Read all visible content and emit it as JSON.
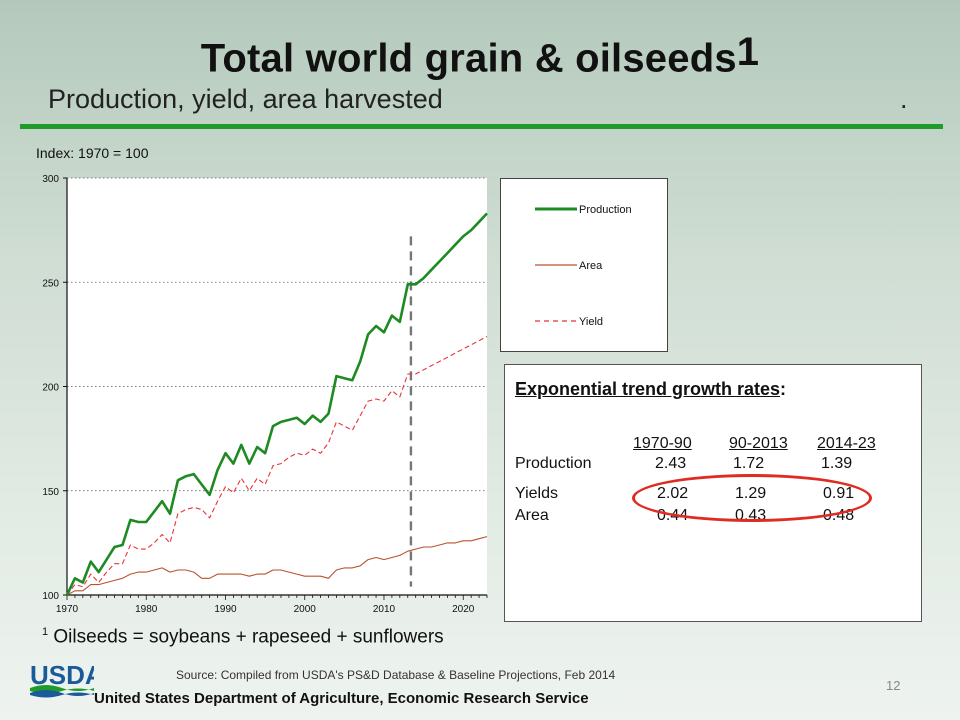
{
  "header": {
    "title": "Total world grain & oilseeds",
    "title_superscript": "1",
    "subtitle": "Production, yield, area harvested",
    "subtitle_trailing": "."
  },
  "index_label": "Index: 1970 = 100",
  "chart_data": {
    "type": "line",
    "title": "",
    "xlabel": "",
    "ylabel": "Index: 1970 = 100",
    "xlim": [
      1970,
      2023
    ],
    "ylim": [
      100,
      300
    ],
    "x_ticks": [
      "1970",
      "1980",
      "1990",
      "2000",
      "2010",
      "2020"
    ],
    "y_ticks": [
      "300",
      "250",
      "200",
      "150",
      "100"
    ],
    "grid": "horizontal dotted",
    "projection_marker_year": 2013.4,
    "legend_position": "right, outside plot",
    "x": [
      1970,
      1971,
      1972,
      1973,
      1974,
      1975,
      1976,
      1977,
      1978,
      1979,
      1980,
      1981,
      1982,
      1983,
      1984,
      1985,
      1986,
      1987,
      1988,
      1989,
      1990,
      1991,
      1992,
      1993,
      1994,
      1995,
      1996,
      1997,
      1998,
      1999,
      2000,
      2001,
      2002,
      2003,
      2004,
      2005,
      2006,
      2007,
      2008,
      2009,
      2010,
      2011,
      2012,
      2013,
      2014,
      2015,
      2016,
      2017,
      2018,
      2019,
      2020,
      2021,
      2022,
      2023
    ],
    "series": [
      {
        "name": "Production",
        "color": "#1e8a22",
        "style": "solid",
        "values": [
          100,
          108,
          106,
          116,
          111,
          117,
          123,
          124,
          136,
          135,
          135,
          140,
          145,
          139,
          155,
          157,
          158,
          153,
          148,
          160,
          168,
          163,
          172,
          163,
          171,
          168,
          181,
          183,
          184,
          185,
          182,
          186,
          183,
          187,
          205,
          204,
          203,
          212,
          225,
          229,
          226,
          234,
          231,
          249,
          249,
          252,
          256,
          260,
          264,
          268,
          272,
          275,
          279,
          283
        ]
      },
      {
        "name": "Area",
        "color": "#b9522d",
        "style": "solid",
        "values": [
          100,
          102,
          102,
          105,
          105,
          106,
          107,
          108,
          110,
          111,
          111,
          112,
          113,
          111,
          112,
          112,
          111,
          108,
          108,
          110,
          110,
          110,
          110,
          109,
          110,
          110,
          112,
          112,
          111,
          110,
          109,
          109,
          109,
          108,
          112,
          113,
          113,
          114,
          117,
          118,
          117,
          118,
          119,
          121,
          122,
          123,
          123,
          124,
          125,
          125,
          126,
          126,
          127,
          128
        ]
      },
      {
        "name": "Yield",
        "color": "#e8333a",
        "style": "dashed",
        "values": [
          100,
          105,
          104,
          110,
          106,
          111,
          115,
          115,
          124,
          122,
          122,
          125,
          129,
          125,
          139,
          141,
          142,
          141,
          137,
          145,
          152,
          149,
          156,
          150,
          156,
          153,
          162,
          163,
          166,
          168,
          167,
          170,
          168,
          173,
          183,
          181,
          179,
          186,
          193,
          194,
          193,
          198,
          195,
          206,
          206,
          208,
          210,
          212,
          214,
          216,
          218,
          220,
          222,
          224
        ]
      }
    ]
  },
  "legend": {
    "items": [
      {
        "label": "Production",
        "color": "#1e8a22"
      },
      {
        "label": "Area",
        "color": "#b9522d"
      },
      {
        "label": "Yield",
        "color": "#e8333a"
      }
    ]
  },
  "rates": {
    "title": "Exponential trend growth rates",
    "title_suffix": ":",
    "periods": [
      "1970-90",
      "90-2013",
      "2014-23"
    ],
    "rows": [
      {
        "label": "Production",
        "values": [
          "2.43",
          "1.72",
          "1.39"
        ]
      },
      {
        "label": "Yields",
        "values": [
          "2.02",
          "1.29",
          "0.91"
        ]
      },
      {
        "label": "Area",
        "values": [
          "0.44",
          "0.43",
          "0.48"
        ]
      }
    ],
    "highlight_color": "#e02b20"
  },
  "footnote": {
    "marker": "1",
    "text": "Oilseeds = soybeans + rapeseed + sunflowers"
  },
  "source": "Source: Compiled from USDA's PS&D Database & Baseline Projections, Feb 2014",
  "page_number": "12",
  "branding": {
    "logo_text": "USDA",
    "agency": "United States Department of Agriculture, Economic Research Service",
    "brand_color": "#1b5a9a",
    "accent_color": "#1e9b2a"
  }
}
